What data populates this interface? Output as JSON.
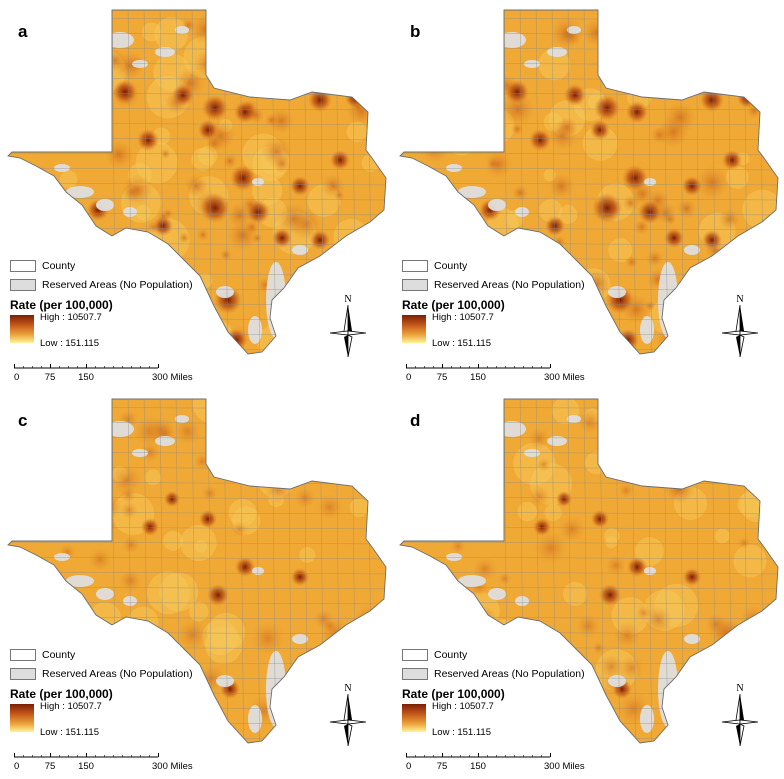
{
  "panels": [
    {
      "label": "a",
      "intensity": "high"
    },
    {
      "label": "b",
      "intensity": "high"
    },
    {
      "label": "c",
      "intensity": "low"
    },
    {
      "label": "d",
      "intensity": "low"
    }
  ],
  "legend": {
    "county_label": "County",
    "reserved_label": "Reserved Areas (No Population)",
    "rate_title": "Rate (per 100,000)",
    "high_label": "High : 10507.7",
    "low_label": "Low : 151.115",
    "ramp_colors": [
      "#7a1e05",
      "#c4581a",
      "#eca23a",
      "#fff39a"
    ]
  },
  "scale": {
    "ticks": [
      "0",
      "75",
      "150",
      "300 Miles"
    ]
  },
  "north_label": "N",
  "colors": {
    "base_fill": "#f0a935",
    "county_lines": "#8a8a8a",
    "reserved_fill": "#dedede",
    "hotspot": "#7a1e05"
  }
}
